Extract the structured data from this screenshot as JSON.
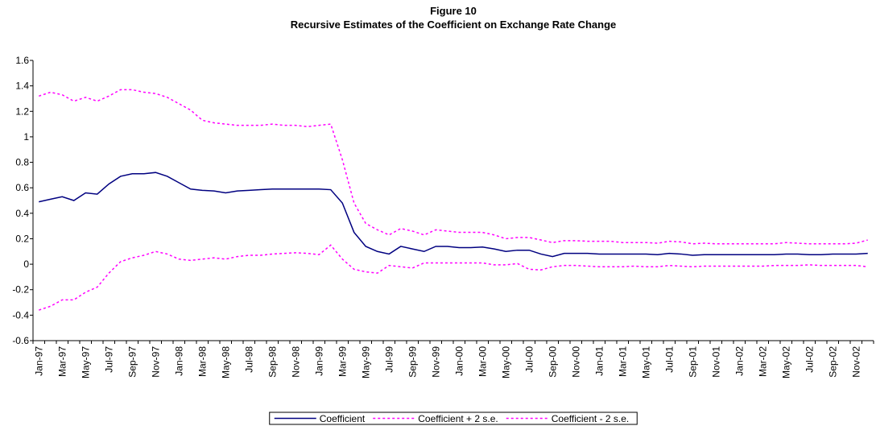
{
  "chart_data": {
    "type": "line",
    "title": "Figure 10",
    "subtitle": "Recursive Estimates of the Coefficient on Exchange Rate Change",
    "categories": [
      "Jan-97",
      null,
      "Mar-97",
      null,
      "May-97",
      null,
      "Jul-97",
      null,
      "Sep-97",
      null,
      "Nov-97",
      null,
      "Jan-98",
      null,
      "Mar-98",
      null,
      "May-98",
      null,
      "Jul-98",
      null,
      "Sep-98",
      null,
      "Nov-98",
      null,
      "Jan-99",
      null,
      "Mar-99",
      null,
      "May-99",
      null,
      "Jul-99",
      null,
      "Sep-99",
      null,
      "Nov-99",
      null,
      "Jan-00",
      null,
      "Mar-00",
      null,
      "May-00",
      null,
      "Jul-00",
      null,
      "Sep-00",
      null,
      "Nov-00",
      null,
      "Jan-01",
      null,
      "Mar-01",
      null,
      "May-01",
      null,
      "Jul-01",
      null,
      "Sep-01",
      null,
      "Nov-01",
      null,
      "Jan-02",
      null,
      "Mar-02",
      null,
      "May-02",
      null,
      "Jul-02",
      null,
      "Sep-02",
      null,
      "Nov-02",
      null
    ],
    "series": [
      {
        "name": "Coefficient",
        "color": "#000080",
        "dash": "solid",
        "values": [
          0.49,
          0.51,
          0.53,
          0.5,
          0.56,
          0.55,
          0.63,
          0.69,
          0.71,
          0.71,
          0.72,
          0.69,
          0.64,
          0.59,
          0.58,
          0.575,
          0.56,
          0.575,
          0.58,
          0.585,
          0.59,
          0.59,
          0.59,
          0.59,
          0.59,
          0.585,
          0.48,
          0.25,
          0.14,
          0.1,
          0.08,
          0.14,
          0.12,
          0.1,
          0.14,
          0.14,
          0.13,
          0.13,
          0.135,
          0.12,
          0.1,
          0.11,
          0.11,
          0.08,
          0.06,
          0.085,
          0.085,
          0.085,
          0.08,
          0.08,
          0.08,
          0.08,
          0.08,
          0.075,
          0.085,
          0.08,
          0.07,
          0.075,
          0.075,
          0.075,
          0.075,
          0.075,
          0.075,
          0.075,
          0.08,
          0.08,
          0.075,
          0.075,
          0.08,
          0.08,
          0.08,
          0.085
        ]
      },
      {
        "name": "Coefficient + 2 s.e.",
        "color": "#FF00FF",
        "dash": "dashed",
        "values": [
          1.32,
          1.35,
          1.33,
          1.28,
          1.31,
          1.28,
          1.32,
          1.37,
          1.37,
          1.35,
          1.34,
          1.31,
          1.26,
          1.21,
          1.13,
          1.11,
          1.1,
          1.09,
          1.09,
          1.09,
          1.1,
          1.09,
          1.09,
          1.08,
          1.09,
          1.1,
          0.82,
          0.48,
          0.32,
          0.27,
          0.23,
          0.28,
          0.26,
          0.23,
          0.27,
          0.26,
          0.25,
          0.25,
          0.25,
          0.23,
          0.2,
          0.21,
          0.21,
          0.19,
          0.17,
          0.185,
          0.185,
          0.18,
          0.18,
          0.18,
          0.17,
          0.17,
          0.17,
          0.165,
          0.18,
          0.175,
          0.16,
          0.165,
          0.16,
          0.16,
          0.16,
          0.16,
          0.16,
          0.16,
          0.17,
          0.165,
          0.16,
          0.16,
          0.16,
          0.16,
          0.165,
          0.19
        ]
      },
      {
        "name": "Coefficient - 2 s.e.",
        "color": "#FF00FF",
        "dash": "dashed",
        "values": [
          -0.36,
          -0.33,
          -0.28,
          -0.28,
          -0.22,
          -0.18,
          -0.07,
          0.02,
          0.05,
          0.07,
          0.1,
          0.08,
          0.04,
          0.03,
          0.04,
          0.05,
          0.04,
          0.06,
          0.07,
          0.07,
          0.08,
          0.085,
          0.09,
          0.085,
          0.075,
          0.15,
          0.04,
          -0.04,
          -0.06,
          -0.07,
          -0.01,
          -0.02,
          -0.03,
          0.01,
          0.01,
          0.01,
          0.01,
          0.01,
          0.01,
          -0.005,
          -0.005,
          0.005,
          -0.04,
          -0.045,
          -0.02,
          -0.01,
          -0.01,
          -0.015,
          -0.02,
          -0.02,
          -0.02,
          -0.015,
          -0.02,
          -0.02,
          -0.01,
          -0.015,
          -0.02,
          -0.015,
          -0.015,
          -0.015,
          -0.015,
          -0.015,
          -0.015,
          -0.01,
          -0.01,
          -0.01,
          -0.005,
          -0.01,
          -0.01,
          -0.01,
          -0.01,
          -0.02
        ]
      }
    ],
    "ylim": [
      -0.6,
      1.6
    ],
    "yticks": [
      -0.6,
      -0.4,
      -0.2,
      0,
      0.2,
      0.4,
      0.6,
      0.8,
      1,
      1.2,
      1.4,
      1.6
    ],
    "grid": false,
    "legend": "bottom"
  }
}
